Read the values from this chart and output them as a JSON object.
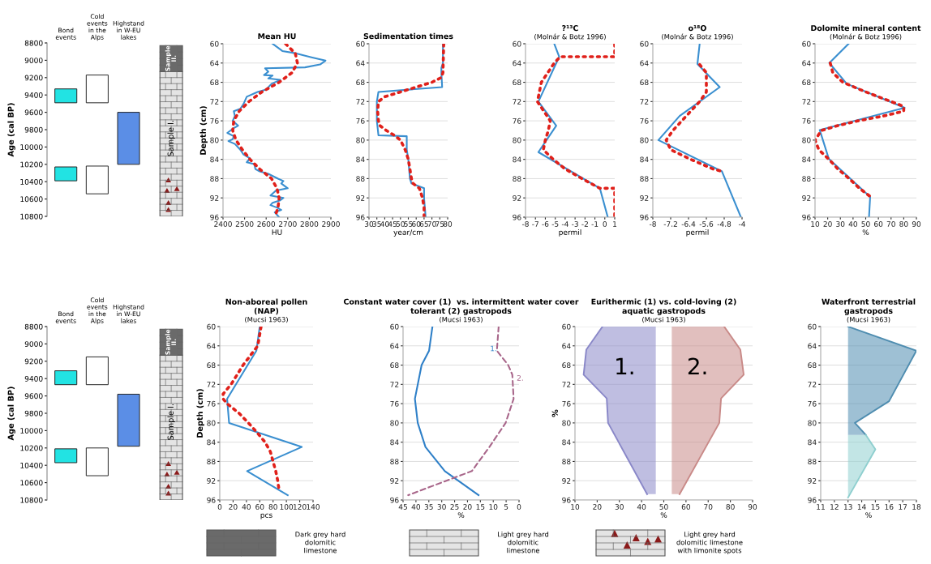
{
  "chart_data": [
    {
      "type": "bar",
      "categories": [
        "Bond\nevents",
        "Cold\nevents\nin the\nAlps",
        "Highstand\nin W-EU\nlakes"
      ],
      "ylabel": "Age (cal BP)",
      "ylim": [
        10800,
        8800
      ],
      "yticks": [
        8800,
        9000,
        9200,
        9400,
        9600,
        9800,
        10000,
        10200,
        10400,
        10600,
        10800
      ],
      "annotations": [
        "Sample\nII.",
        "Sample I."
      ],
      "series": [
        {
          "colors": [
            "#22e3e3",
            "#ffffff",
            "#5b8ee6"
          ],
          "base": [
            9330,
            9170,
            9600
          ],
          "values": [
            160,
            320,
            600
          ]
        },
        {
          "colors": [
            "#22e3e3",
            "#ffffff",
            null
          ],
          "base": [
            10230,
            10220,
            null
          ],
          "values": [
            160,
            320,
            null
          ]
        }
      ]
    },
    {
      "type": "line",
      "orientation": "horizontal",
      "title": "Mean HU",
      "xlabel": "HU",
      "ylabel": "Depth (cm)",
      "xlim": [
        2400,
        2900
      ],
      "xticks": [
        2400,
        2500,
        2600,
        2700,
        2800,
        2900
      ],
      "ylim": [
        96,
        60
      ],
      "yticks": [
        60,
        64,
        68,
        72,
        76,
        80,
        84,
        88,
        92,
        96
      ],
      "grid": "y",
      "series": [
        {
          "color": "#3a8fd0",
          "line_style": "solid",
          "x": [
            60,
            61,
            61.5,
            62,
            62.8,
            63.5,
            64.3,
            64.9,
            65.1,
            65.8,
            66.5,
            66.6,
            67.2,
            67.5,
            68.3,
            69.5,
            70,
            71,
            72.5,
            73.5,
            74,
            75,
            76,
            77,
            77.5,
            78.5,
            79.2,
            79.8,
            80.2,
            80.8,
            82,
            83,
            83.8,
            84.6,
            85,
            86,
            86.5,
            87,
            88,
            88.5,
            89,
            90,
            90.5,
            91.5,
            92,
            92.5,
            93,
            93.5,
            94,
            94.5,
            95,
            96
          ],
          "values": [
            2630,
            2660,
            2675,
            2740,
            2810,
            2875,
            2850,
            2780,
            2595,
            2610,
            2590,
            2630,
            2610,
            2665,
            2625,
            2600,
            2560,
            2510,
            2495,
            2480,
            2450,
            2455,
            2445,
            2470,
            2450,
            2420,
            2450,
            2445,
            2425,
            2455,
            2480,
            2495,
            2525,
            2510,
            2545,
            2550,
            2570,
            2610,
            2655,
            2680,
            2670,
            2700,
            2645,
            2620,
            2680,
            2665,
            2630,
            2620,
            2650,
            2670,
            2640,
            2660
          ]
        },
        {
          "color": "#e0201a",
          "line_style": "dotted",
          "x": [
            60,
            62,
            64,
            66,
            68,
            70,
            72,
            74,
            76,
            78,
            80,
            82,
            84,
            86,
            88,
            90,
            92,
            94,
            96
          ],
          "values": [
            2690,
            2735,
            2745,
            2720,
            2660,
            2580,
            2520,
            2475,
            2450,
            2445,
            2460,
            2490,
            2525,
            2570,
            2625,
            2650,
            2660,
            2655,
            2640
          ]
        }
      ]
    },
    {
      "type": "line",
      "orientation": "horizontal",
      "title": "Sedimentation times",
      "xlabel": "year/cm",
      "xlim": [
        30,
        80
      ],
      "xticks": [
        30,
        35,
        40,
        45,
        50,
        55,
        60,
        65,
        70,
        75,
        80
      ],
      "ylim": [
        96,
        60
      ],
      "yticks": [
        60,
        64,
        68,
        72,
        76,
        80,
        84,
        88,
        92,
        96
      ],
      "grid": "y",
      "series": [
        {
          "color": "#3a8fd0",
          "line_style": "solid",
          "x": [
            60,
            64,
            65,
            66,
            69,
            70,
            72,
            76,
            79,
            79.2,
            82,
            84,
            86,
            88,
            89,
            90,
            92,
            96
          ],
          "values": [
            77,
            77,
            76,
            76,
            76.5,
            36,
            35,
            35,
            36,
            54,
            54,
            55,
            55.5,
            56,
            57,
            65,
            65,
            66
          ]
        },
        {
          "color": "#e0201a",
          "line_style": "dotted",
          "x": [
            60,
            66,
            67,
            68,
            69,
            70,
            71,
            72,
            74,
            76,
            77,
            78,
            79,
            80,
            82,
            84,
            86,
            88,
            89,
            90,
            92,
            94,
            96
          ],
          "values": [
            77.5,
            77,
            76,
            70,
            60,
            50,
            40,
            36,
            35.5,
            36,
            37,
            41,
            46,
            50,
            53,
            55,
            56,
            57,
            58,
            62,
            64,
            65,
            65
          ]
        }
      ]
    },
    {
      "type": "line",
      "orientation": "horizontal",
      "title": "?¹³C",
      "subtitle": "(Molnár & Botz 1996)",
      "xlabel": "permil",
      "xlim": [
        -8,
        1
      ],
      "xticks": [
        -8,
        -7,
        -6,
        -5,
        -4,
        -3,
        -2,
        -1,
        0,
        1
      ],
      "ylim": [
        96,
        60
      ],
      "yticks": [
        60,
        64,
        68,
        72,
        76,
        80,
        84,
        88,
        92,
        96
      ],
      "grid": "y",
      "series": [
        {
          "color": "#3a8fd0",
          "line_style": "solid",
          "x": [
            60,
            62.7,
            72,
            77,
            82.5,
            90,
            96
          ],
          "values": [
            -5.1,
            -4.6,
            -6.7,
            -4.9,
            -6.7,
            -0.5,
            0.3
          ]
        },
        {
          "color": "#e0201a",
          "line_style": "dotted",
          "x": [
            60,
            62.7,
            62.7,
            64,
            68,
            72,
            76,
            78,
            80,
            82,
            84,
            86,
            88,
            90,
            90,
            96
          ],
          "values": [
            1,
            1,
            -4.5,
            -5.1,
            -6.4,
            -6.8,
            -5.5,
            -5.7,
            -6.0,
            -6.2,
            -5.2,
            -4,
            -2.3,
            -0.5,
            1,
            1
          ]
        }
      ]
    },
    {
      "type": "line",
      "orientation": "horizontal",
      "title": "o¹⁸O",
      "subtitle": "(Molnár & Botz 1996)",
      "xlabel": "permil",
      "xlim": [
        -8,
        -4
      ],
      "xticks": [
        -8,
        -7.2,
        -6.4,
        -5.6,
        -4.8,
        -4
      ],
      "ylim": [
        96,
        60
      ],
      "yticks": [
        60,
        64,
        68,
        72,
        76,
        80,
        84,
        88,
        92,
        96
      ],
      "grid": "y",
      "series": [
        {
          "color": "#3a8fd0",
          "line_style": "solid",
          "x": [
            60,
            64.2,
            69,
            75,
            80,
            86.5,
            96
          ],
          "values": [
            -5.9,
            -6.0,
            -5.0,
            -6.8,
            -7.75,
            -4.9,
            -4.05
          ]
        },
        {
          "color": "#e0201a",
          "line_style": "dotted",
          "x": [
            64.3,
            66,
            68,
            70,
            72,
            74,
            76,
            78,
            80,
            82,
            84,
            86,
            86.5
          ],
          "values": [
            -5.9,
            -5.6,
            -5.6,
            -5.6,
            -5.9,
            -6.3,
            -6.7,
            -7.1,
            -7.4,
            -7.2,
            -6.3,
            -5.3,
            -4.9
          ]
        }
      ]
    },
    {
      "type": "line",
      "orientation": "horizontal",
      "title": "Dolomite mineral content",
      "subtitle": "(Molnár & Botz 1996)",
      "xlabel": "%",
      "xlim": [
        10,
        90
      ],
      "xticks": [
        10,
        20,
        30,
        40,
        50,
        60,
        70,
        80,
        90
      ],
      "ylim": [
        96,
        60
      ],
      "yticks": [
        60,
        64,
        68,
        72,
        76,
        80,
        84,
        88,
        92,
        96
      ],
      "grid": "y",
      "series": [
        {
          "color": "#3a8fd0",
          "line_style": "solid",
          "x": [
            60,
            64,
            68.3,
            73.3,
            77.9,
            83.9,
            91.8,
            96
          ],
          "values": [
            36.5,
            21.3,
            35,
            80.7,
            13.7,
            20.9,
            53.5,
            52.6
          ]
        },
        {
          "color": "#e0201a",
          "line_style": "dotted",
          "x": [
            64,
            66,
            68,
            70,
            72,
            73,
            74,
            75,
            76,
            77,
            78,
            80,
            82,
            84,
            86,
            88,
            90,
            91.8
          ],
          "values": [
            22,
            24,
            32,
            50,
            70,
            80,
            80,
            64,
            44,
            28,
            15,
            10,
            13,
            21,
            28,
            37,
            45,
            54
          ]
        }
      ]
    },
    {
      "type": "bar",
      "categories": [
        "Bond\nevents",
        "Cold\nevents\nin the\nAlps",
        "Highstand\nin W-EU\nlakes"
      ],
      "ylabel": "Age (cal BP)",
      "ylim": [
        10800,
        8800
      ],
      "yticks": [
        8800,
        9000,
        9200,
        9400,
        9600,
        9800,
        10000,
        10200,
        10400,
        10600,
        10800
      ],
      "annotations": [
        "Sample\nII.",
        "Sample I."
      ],
      "series": [
        {
          "colors": [
            "#22e3e3",
            "#ffffff",
            "#5b8ee6"
          ],
          "base": [
            9310,
            9150,
            9580
          ],
          "values": [
            160,
            320,
            600
          ]
        },
        {
          "colors": [
            "#22e3e3",
            "#ffffff",
            null
          ],
          "base": [
            10210,
            10200,
            null
          ],
          "values": [
            160,
            320,
            null
          ]
        }
      ]
    },
    {
      "type": "line",
      "orientation": "horizontal",
      "title": "Non-aboreal pollen\n(NAP)",
      "subtitle": "(Mucsi 1963)",
      "xlabel": "pcs",
      "ylabel": "Depth (cm)",
      "xlim": [
        0,
        140
      ],
      "xticks": [
        0,
        20,
        40,
        60,
        80,
        100,
        120,
        140
      ],
      "ylim": [
        96,
        60
      ],
      "yticks": [
        60,
        64,
        68,
        72,
        76,
        80,
        84,
        88,
        92,
        96
      ],
      "grid": "y",
      "series": [
        {
          "color": "#3a8fd0",
          "line_style": "solid",
          "x": [
            60,
            65,
            75,
            80,
            85,
            90,
            95
          ],
          "values": [
            60,
            55,
            11,
            14,
            123,
            41,
            102
          ]
        },
        {
          "color": "#e0201a",
          "line_style": "dotted",
          "x": [
            60,
            64,
            68,
            72,
            74,
            75,
            76,
            78,
            80,
            82,
            84,
            86,
            88,
            90,
            92,
            94
          ],
          "values": [
            62,
            57,
            35,
            17,
            5,
            5,
            11,
            29,
            43,
            56,
            68,
            76,
            80,
            84,
            87,
            89
          ]
        }
      ]
    },
    {
      "type": "line",
      "orientation": "horizontal",
      "title": "Constant water cover (1)  vs. intermittent water cover\ntolerant (2) gastropods",
      "subtitle": "(Mucsi 1963)",
      "xlabel": "%",
      "xlim": [
        45,
        0
      ],
      "xticks": [
        45,
        40,
        35,
        30,
        25,
        20,
        15,
        10,
        5,
        0
      ],
      "ylim": [
        96,
        60
      ],
      "yticks": [
        60,
        64,
        68,
        72,
        76,
        80,
        84,
        88,
        92,
        96
      ],
      "grid": "y",
      "annotations": [
        "1.",
        "2."
      ],
      "series": [
        {
          "color": "#2f80c8",
          "line_style": "solid",
          "x": [
            60,
            65,
            68,
            75,
            80,
            85,
            90,
            95
          ],
          "values": [
            33.6,
            34.9,
            37.8,
            40.4,
            39.3,
            36.3,
            28.8,
            15.7
          ]
        },
        {
          "color": "#a8668a",
          "line_style": "dashed",
          "x": [
            60,
            65,
            68,
            70,
            75,
            80,
            85,
            90,
            95
          ],
          "values": [
            7.9,
            8.6,
            4.2,
            2.6,
            2.1,
            5.2,
            11.5,
            18.3,
            43
          ]
        }
      ]
    },
    {
      "type": "line",
      "orientation": "horizontal",
      "title": "Eurithermic (1) vs. cold-loving (2)\naquatic gastropods",
      "subtitle": "(Mucsi 1963)",
      "xlabel": "%",
      "ylabel": "%",
      "xlim": [
        10,
        90
      ],
      "xticks": [
        10,
        20,
        30,
        40,
        50,
        60,
        70,
        80,
        90
      ],
      "ylim": [
        96,
        60
      ],
      "yticks": [
        60,
        64,
        68,
        72,
        76,
        80,
        84,
        88,
        92,
        96
      ],
      "grid": "y",
      "annotations": [
        "1.",
        "2."
      ],
      "series": [
        {
          "color": "#8a88c8",
          "x": [
            60,
            64.8,
            70,
            74.9,
            80,
            94.8
          ],
          "values": [
            22.4,
            15.1,
            13.9,
            24.3,
            24.9,
            42.5
          ],
          "lower": [
            22.4,
            15.1,
            13.9,
            24.3,
            24.9,
            42.5
          ],
          "upper": [
            46.4,
            46.4,
            46.4,
            46.4,
            46.4,
            46.4
          ]
        },
        {
          "color": "#c98a88",
          "x": [
            60,
            64.8,
            70,
            74.9,
            80,
            94.8
          ],
          "values": [
            77.2,
            84.5,
            86,
            75.8,
            75,
            57.1
          ],
          "lower": [
            53.6,
            53.6,
            53.6,
            53.6,
            53.6,
            53.6
          ],
          "upper": [
            77.2,
            84.5,
            86,
            75.8,
            75,
            57.1
          ]
        }
      ]
    },
    {
      "type": "line",
      "orientation": "horizontal",
      "title": "Waterfront terrestrial\ngastropods",
      "subtitle": "(Mucsi 1963)",
      "xlabel": "%",
      "xlim": [
        11,
        18
      ],
      "xticks": [
        11,
        12,
        13,
        14,
        15,
        16,
        17,
        18
      ],
      "ylim": [
        96,
        60
      ],
      "yticks": [
        60,
        64,
        68,
        72,
        76,
        80,
        84,
        88,
        92,
        96
      ],
      "grid": "y",
      "series": [
        {
          "color": "#4f8db0",
          "x": [
            60,
            65,
            75.5,
            80,
            82.5
          ],
          "values": [
            13,
            18,
            16,
            13.5,
            14.3
          ],
          "lower": [
            13,
            13,
            13,
            13,
            13
          ],
          "upper": [
            13,
            18,
            16,
            13.5,
            14.3
          ]
        },
        {
          "color": "#8fcfcf",
          "x": [
            82.5,
            85.5,
            95.5
          ],
          "values": [
            14.3,
            15,
            13
          ],
          "lower": [
            13,
            13,
            13
          ],
          "upper": [
            14.3,
            15,
            13
          ]
        }
      ]
    },
    {
      "type": "other",
      "annotations": [
        "Dark grey hard\ndolomitic\nlimestone",
        "Light grey hard\ndolomitic\nlimestone",
        "Light grey hard\ndolomitic limestone\nwith limonite spots"
      ]
    }
  ]
}
